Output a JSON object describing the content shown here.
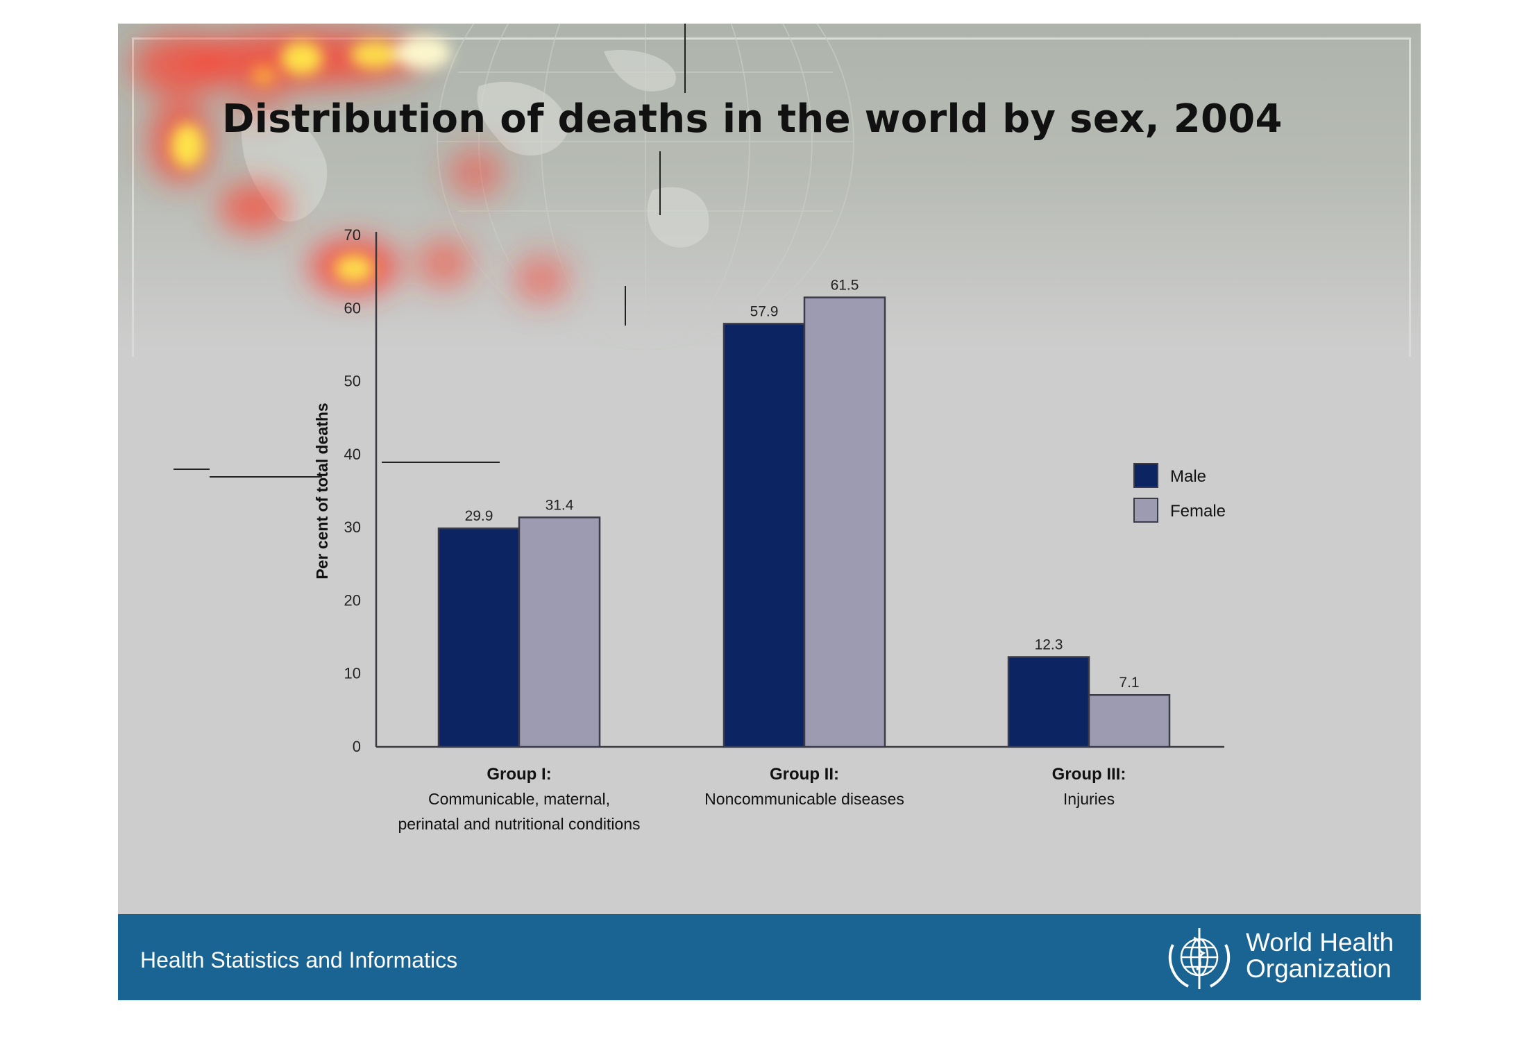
{
  "slide": {
    "title": "Distribution of deaths in the world by sex, 2004",
    "footer_text": "Health Statistics and Informatics",
    "org_name_line1": "World Health",
    "org_name_line2": "Organization",
    "org_emblem_icon": "who-emblem-icon"
  },
  "colors": {
    "male": "#0c2461",
    "female": "#9d9bb2",
    "footer": "#196492",
    "background": "#cdcdcd"
  },
  "chart_data": {
    "type": "bar",
    "title": "",
    "ylabel": "Per cent of total deaths",
    "xlabel": "",
    "ylim": [
      0,
      70
    ],
    "yticks": [
      0,
      10,
      20,
      30,
      40,
      50,
      60,
      70
    ],
    "grid": false,
    "legend_position": "right",
    "categories": [
      {
        "lines": [
          "Group I:",
          "Communicable, maternal,",
          "perinatal and nutritional conditions"
        ]
      },
      {
        "lines": [
          "Group II:",
          "Noncommunicable diseases"
        ]
      },
      {
        "lines": [
          "Group III:",
          "Injuries"
        ]
      }
    ],
    "series": [
      {
        "name": "Male",
        "values": [
          29.9,
          57.9,
          12.3
        ]
      },
      {
        "name": "Female",
        "values": [
          31.4,
          61.5,
          7.1
        ]
      }
    ]
  }
}
